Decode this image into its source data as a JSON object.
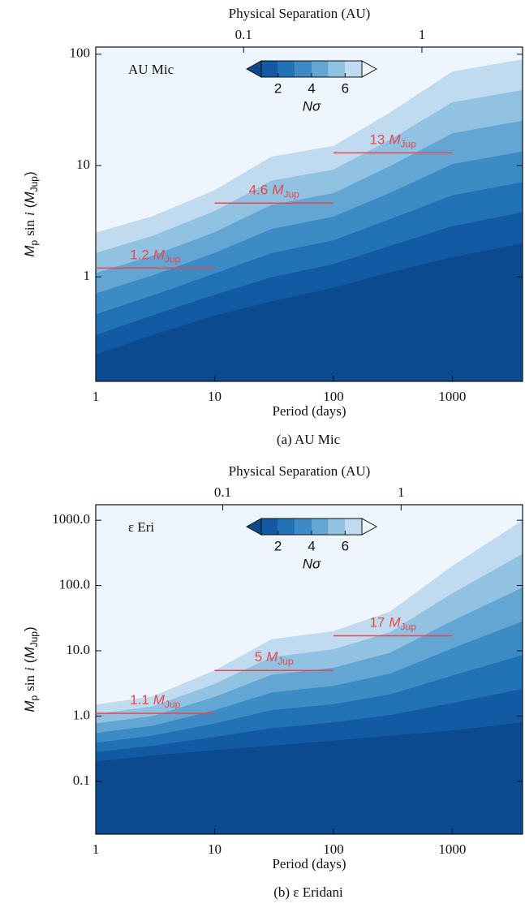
{
  "chart_data": [
    {
      "type": "contour",
      "title": "AU Mic",
      "caption": "(a) AU Mic",
      "xlabel": "Period (days)",
      "x2label": "Physical Separation (AU)",
      "ylabel": [
        "M",
        "p",
        "sin",
        "i",
        "(",
        "M",
        "Jup",
        ")"
      ],
      "xscale": "log",
      "yscale": "log",
      "xlim": [
        1,
        3900
      ],
      "xticks": [
        1,
        10,
        100,
        1000
      ],
      "x2lim": [
        0.0148,
        3.67
      ],
      "x2ticks": [
        0.1,
        1
      ],
      "ylim": [
        0.115,
        116
      ],
      "yticks": [
        1,
        10,
        100
      ],
      "x": [
        1,
        3,
        10,
        30,
        100,
        300,
        1000,
        3900
      ],
      "contours": [
        {
          "level": 1,
          "values": [
            0.2,
            0.3,
            0.45,
            0.6,
            0.8,
            1.1,
            1.5,
            2.0
          ]
        },
        {
          "level": 2,
          "values": [
            0.3,
            0.45,
            0.69,
            0.99,
            1.3,
            1.9,
            2.85,
            3.8
          ]
        },
        {
          "level": 3,
          "values": [
            0.46,
            0.68,
            1.07,
            1.63,
            2.13,
            3.3,
            5.4,
            7.1
          ]
        },
        {
          "level": 4,
          "values": [
            0.71,
            1.03,
            1.64,
            2.69,
            3.47,
            5.7,
            10.3,
            13.4
          ]
        },
        {
          "level": 5,
          "values": [
            1.08,
            1.55,
            2.52,
            4.43,
            5.65,
            9.9,
            19.5,
            25.3
          ]
        },
        {
          "level": 6,
          "values": [
            1.64,
            2.33,
            3.9,
            7.3,
            9.2,
            17.1,
            37,
            47.7
          ]
        },
        {
          "level": 7,
          "values": [
            2.5,
            3.5,
            6,
            12,
            15,
            30,
            70,
            90
          ]
        }
      ],
      "colors": [
        "#0b4a8f",
        "#125aa3",
        "#2171b5",
        "#3d8bc4",
        "#64a6d3",
        "#92c2e2",
        "#c0dbef",
        "#eef5fc"
      ],
      "colorbar": {
        "label": "Nσ",
        "ticks": [
          2,
          4,
          6
        ]
      },
      "annotation_unit": {
        "symbol": "M",
        "subscript": "Jup"
      },
      "annotation_color": "#e8474d",
      "annotations": [
        {
          "x": [
            1,
            10
          ],
          "value": 1.2
        },
        {
          "x": [
            10,
            100
          ],
          "value": 4.6
        },
        {
          "x": [
            100,
            1000
          ],
          "value": 13
        }
      ]
    },
    {
      "type": "contour",
      "title": "ε Eri",
      "caption": "(b) ε Eridani",
      "xlabel": "Period (days)",
      "x2label": "Physical Separation (AU)",
      "ylabel": [
        "M",
        "p",
        "sin",
        "i",
        "(",
        "M",
        "Jup",
        ")"
      ],
      "xscale": "log",
      "yscale": "log",
      "xlim": [
        1,
        3900
      ],
      "xticks": [
        1,
        10,
        100,
        1000
      ],
      "x2lim": [
        0.0194,
        4.8
      ],
      "x2ticks": [
        0.1,
        1
      ],
      "ylim": [
        0.0155,
        1730
      ],
      "yticks": [
        {
          "value": 1000,
          "label": "1000.0"
        },
        {
          "value": 100,
          "label": "100.0"
        },
        {
          "value": 10,
          "label": "10.0"
        },
        {
          "value": 1,
          "label": "1.0"
        },
        0.1
      ],
      "x": [
        1,
        3,
        10,
        30,
        100,
        300,
        1000,
        3900
      ],
      "contours": [
        {
          "level": 1,
          "values": [
            0.2,
            0.25,
            0.3,
            0.35,
            0.42,
            0.5,
            0.6,
            0.8
          ]
        },
        {
          "level": 2,
          "values": [
            0.28,
            0.35,
            0.48,
            0.65,
            0.8,
            1.04,
            1.58,
            2.6
          ]
        },
        {
          "level": 3,
          "values": [
            0.39,
            0.5,
            0.77,
            1.23,
            1.52,
            2.15,
            4.16,
            8.6
          ]
        },
        {
          "level": 4,
          "values": [
            0.55,
            0.71,
            1.23,
            2.29,
            2.9,
            4.47,
            10.9,
            28.3
          ]
        },
        {
          "level": 5,
          "values": [
            0.77,
            1.0,
            1.96,
            4.29,
            5.5,
            9.3,
            28.8,
            93
          ]
        },
        {
          "level": 6,
          "values": [
            1.07,
            1.41,
            3.1,
            8.0,
            10.5,
            19.3,
            76,
            305
          ]
        },
        {
          "level": 7,
          "values": [
            1.5,
            2,
            5,
            15,
            20,
            40,
            200,
            1000
          ]
        }
      ],
      "colors": [
        "#0b4a8f",
        "#125aa3",
        "#2171b5",
        "#3d8bc4",
        "#64a6d3",
        "#92c2e2",
        "#c0dbef",
        "#eef5fc"
      ],
      "colorbar": {
        "label": "Nσ",
        "ticks": [
          2,
          4,
          6
        ]
      },
      "annotation_unit": {
        "symbol": "M",
        "subscript": "Jup"
      },
      "annotation_color": "#e8474d",
      "annotations": [
        {
          "x": [
            1,
            10
          ],
          "value": 1.1
        },
        {
          "x": [
            10,
            100
          ],
          "value": 5
        },
        {
          "x": [
            100,
            1000
          ],
          "value": 17
        }
      ]
    }
  ]
}
